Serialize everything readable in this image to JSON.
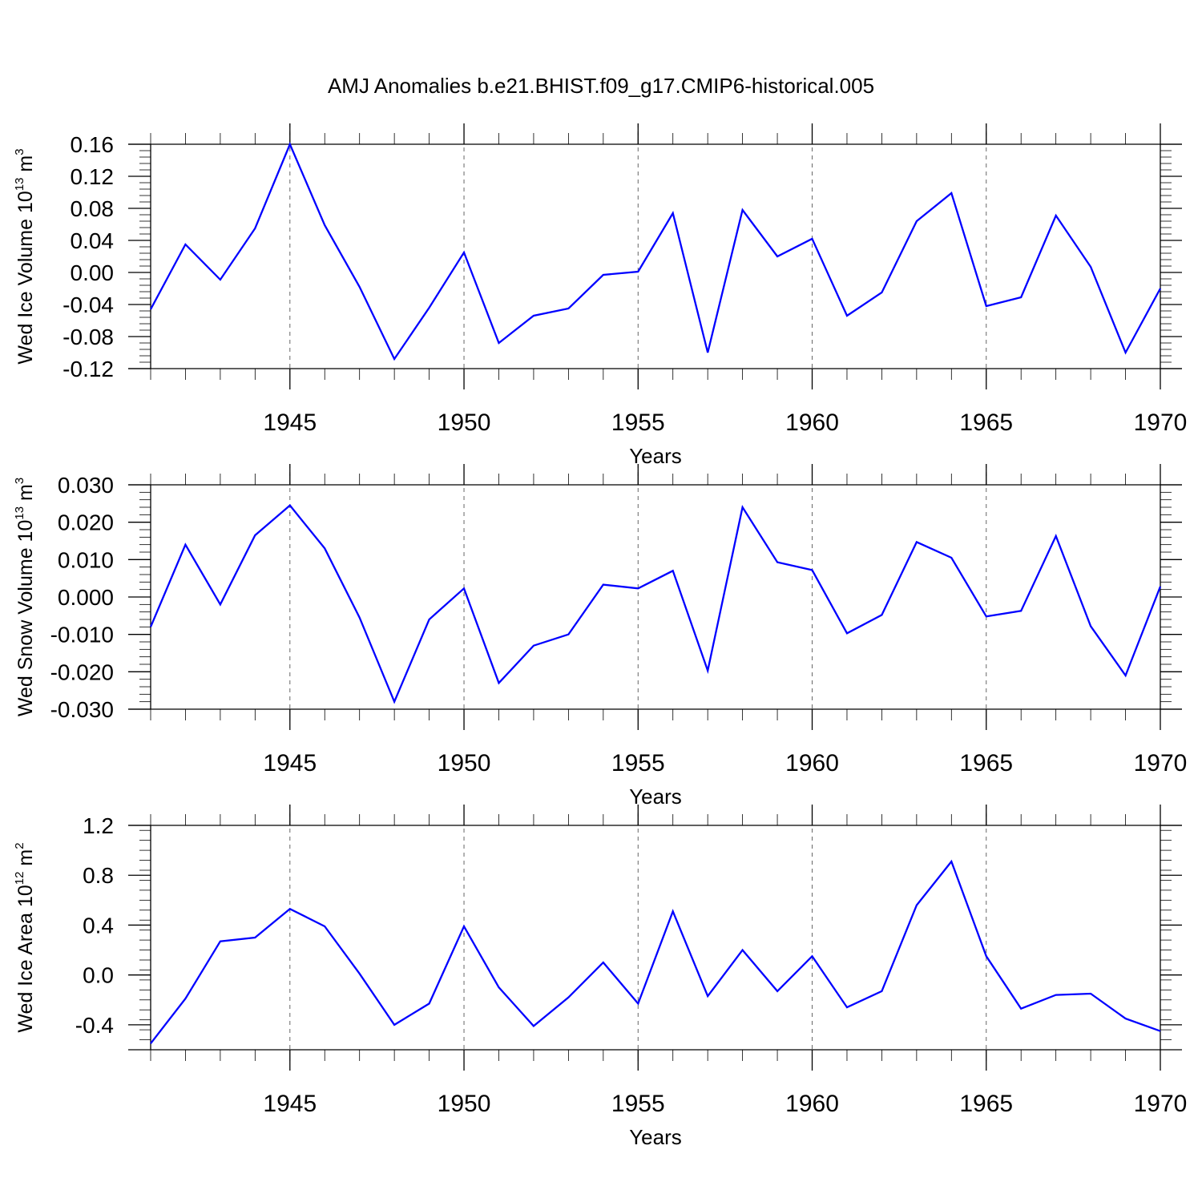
{
  "title": "AMJ Anomalies b.e21.BHIST.f09_g17.CMIP6-historical.005",
  "colors": {
    "series": "#0000ff",
    "axis": "#000000",
    "grid": "#666666"
  },
  "chart_data": [
    {
      "type": "line",
      "ylabel": {
        "base": "Wed Ice Volume 10",
        "exp": "13",
        "unit": " m",
        "unit_exp": "3"
      },
      "xlabel": "Years",
      "xlim": [
        1941,
        1970
      ],
      "ylim": [
        -0.12,
        0.16
      ],
      "yticks": [
        -0.12,
        -0.08,
        -0.04,
        0.0,
        0.04,
        0.08,
        0.12,
        0.16
      ],
      "ytick_labels": [
        "-0.12",
        "-0.08",
        "-0.04",
        "0.00",
        "0.04",
        "0.08",
        "0.12",
        "0.16"
      ],
      "xticks": [
        1945,
        1950,
        1955,
        1960,
        1965,
        1970
      ],
      "xtick_labels": [
        "1945",
        "1950",
        "1955",
        "1960",
        "1965",
        "1970"
      ],
      "vgrid": [
        1945,
        1950,
        1955,
        1960,
        1965
      ],
      "series": [
        {
          "name": "Wed Ice Volume",
          "x": [
            1941,
            1942,
            1943,
            1944,
            1945,
            1946,
            1947,
            1948,
            1949,
            1950,
            1951,
            1952,
            1953,
            1954,
            1955,
            1956,
            1957,
            1958,
            1959,
            1960,
            1961,
            1962,
            1963,
            1964,
            1965,
            1966,
            1967,
            1968,
            1969,
            1970
          ],
          "values": [
            -0.046,
            0.035,
            -0.009,
            0.055,
            0.16,
            0.059,
            -0.018,
            -0.108,
            -0.044,
            0.025,
            -0.088,
            -0.054,
            -0.045,
            -0.003,
            0.001,
            0.074,
            -0.1,
            0.078,
            0.02,
            0.042,
            -0.054,
            -0.025,
            0.064,
            0.099,
            -0.042,
            -0.031,
            0.071,
            0.007,
            -0.1,
            -0.02
          ]
        }
      ]
    },
    {
      "type": "line",
      "ylabel": {
        "base": "Wed Snow Volume 10",
        "exp": "13",
        "unit": " m",
        "unit_exp": "3"
      },
      "xlabel": "Years",
      "xlim": [
        1941,
        1970
      ],
      "ylim": [
        -0.03,
        0.03
      ],
      "yticks": [
        -0.03,
        -0.02,
        -0.01,
        0.0,
        0.01,
        0.02,
        0.03
      ],
      "ytick_labels": [
        "-0.030",
        "-0.020",
        "-0.010",
        "0.000",
        "0.010",
        "0.020",
        "0.030"
      ],
      "xticks": [
        1945,
        1950,
        1955,
        1960,
        1965,
        1970
      ],
      "xtick_labels": [
        "1945",
        "1950",
        "1955",
        "1960",
        "1965",
        "1970"
      ],
      "vgrid": [
        1945,
        1950,
        1955,
        1960,
        1965
      ],
      "series": [
        {
          "name": "Wed Snow Volume",
          "x": [
            1941,
            1942,
            1943,
            1944,
            1945,
            1946,
            1947,
            1948,
            1949,
            1950,
            1951,
            1952,
            1953,
            1954,
            1955,
            1956,
            1957,
            1958,
            1959,
            1960,
            1961,
            1962,
            1963,
            1964,
            1965,
            1966,
            1967,
            1968,
            1969,
            1970
          ],
          "values": [
            -0.008,
            0.014,
            -0.002,
            0.0165,
            0.0245,
            0.013,
            -0.0055,
            -0.028,
            -0.006,
            0.0023,
            -0.023,
            -0.013,
            -0.01,
            0.0033,
            0.0023,
            0.007,
            -0.0197,
            0.024,
            0.0093,
            0.0072,
            -0.0097,
            -0.0048,
            0.0147,
            0.0105,
            -0.0052,
            -0.0037,
            0.0163,
            -0.0078,
            -0.021,
            0.0028
          ]
        }
      ]
    },
    {
      "type": "line",
      "ylabel": {
        "base": "Wed Ice Area 10",
        "exp": "12",
        "unit": " m",
        "unit_exp": "2"
      },
      "xlabel": "Years",
      "xlim": [
        1941,
        1970
      ],
      "ylim": [
        -0.6,
        1.2
      ],
      "yticks": [
        -0.4,
        0.0,
        0.4,
        0.8,
        1.2
      ],
      "ytick_labels": [
        "-0.4",
        "0.0",
        "0.4",
        "0.8",
        "1.2"
      ],
      "xticks": [
        1945,
        1950,
        1955,
        1960,
        1965,
        1970
      ],
      "xtick_labels": [
        "1945",
        "1950",
        "1955",
        "1960",
        "1965",
        "1970"
      ],
      "vgrid": [
        1945,
        1950,
        1955,
        1960,
        1965
      ],
      "series": [
        {
          "name": "Wed Ice Area",
          "x": [
            1941,
            1942,
            1943,
            1944,
            1945,
            1946,
            1947,
            1948,
            1949,
            1950,
            1951,
            1952,
            1953,
            1954,
            1955,
            1956,
            1957,
            1958,
            1959,
            1960,
            1961,
            1962,
            1963,
            1964,
            1965,
            1966,
            1967,
            1968,
            1969,
            1970
          ],
          "values": [
            -0.55,
            -0.19,
            0.27,
            0.3,
            0.53,
            0.39,
            0.01,
            -0.4,
            -0.23,
            0.39,
            -0.1,
            -0.41,
            -0.18,
            0.1,
            -0.23,
            0.51,
            -0.17,
            0.2,
            -0.13,
            0.15,
            -0.26,
            -0.13,
            0.56,
            0.91,
            0.15,
            -0.27,
            -0.16,
            -0.15,
            -0.35,
            -0.45
          ]
        }
      ]
    }
  ]
}
